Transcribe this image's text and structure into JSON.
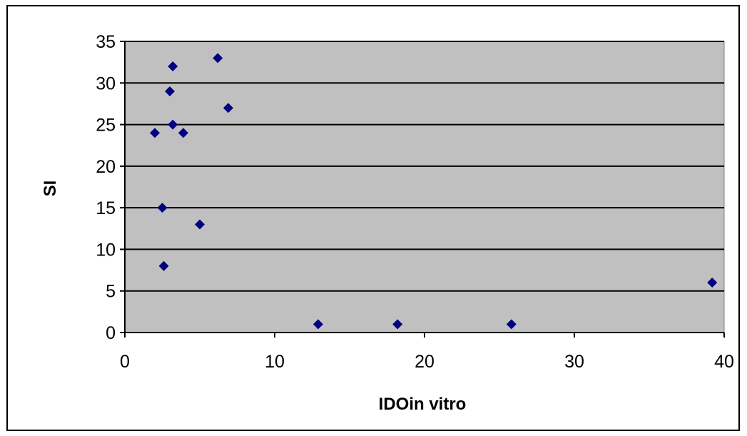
{
  "chart_data": {
    "type": "scatter",
    "title": "",
    "xlabel": "IDOin vitro",
    "ylabel": "SI",
    "xlim": [
      0,
      40
    ],
    "ylim": [
      0,
      35
    ],
    "xticks": [
      "0",
      "10",
      "20",
      "30",
      "40"
    ],
    "yticks": [
      "0",
      "5",
      "10",
      "15",
      "20",
      "25",
      "30",
      "35"
    ],
    "grid": "horizontal",
    "legend": "none",
    "plot_background": "#c0c0c0",
    "marker_color": "#000080",
    "marker": "diamond",
    "points": [
      {
        "x": 2.0,
        "y": 24
      },
      {
        "x": 2.5,
        "y": 15
      },
      {
        "x": 2.6,
        "y": 8
      },
      {
        "x": 3.0,
        "y": 29
      },
      {
        "x": 3.2,
        "y": 32
      },
      {
        "x": 3.2,
        "y": 25
      },
      {
        "x": 3.9,
        "y": 24
      },
      {
        "x": 5.0,
        "y": 13
      },
      {
        "x": 6.2,
        "y": 33
      },
      {
        "x": 6.9,
        "y": 27
      },
      {
        "x": 12.9,
        "y": 1
      },
      {
        "x": 18.2,
        "y": 1
      },
      {
        "x": 25.8,
        "y": 1
      },
      {
        "x": 39.2,
        "y": 6
      }
    ]
  }
}
